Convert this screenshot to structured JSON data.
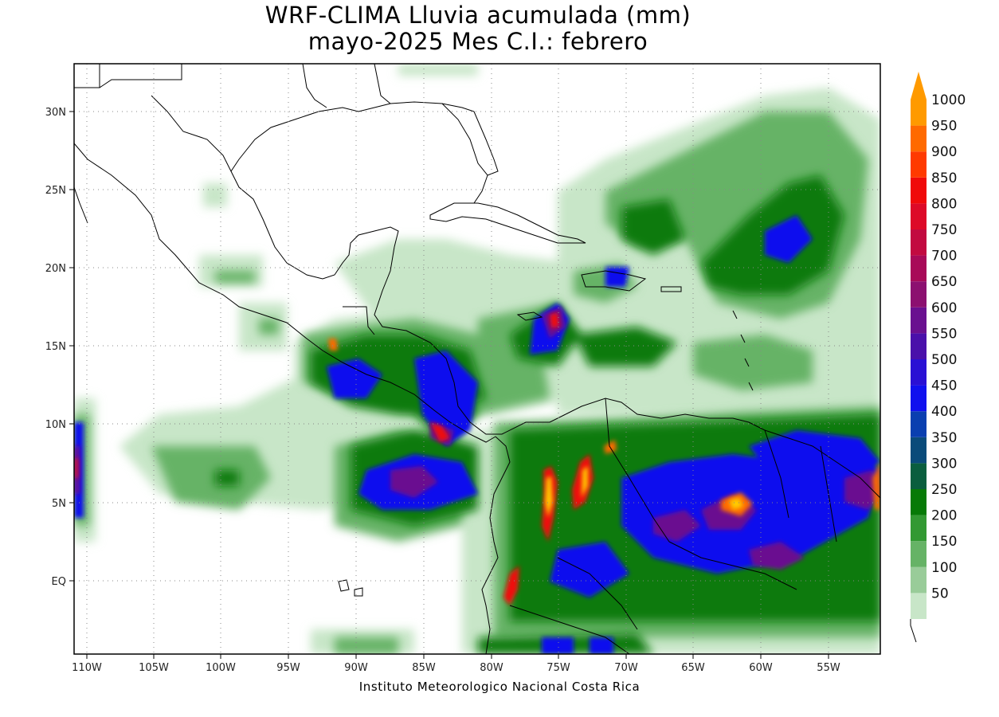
{
  "title": {
    "line1": "WRF-CLIMA Lluvia acumulada (mm)",
    "line2": "mayo-2025 Mes C.I.: febrero"
  },
  "footer": "Instituto Meteorologico Nacional Costa Rica",
  "axes": {
    "x_ticks": [
      "110W",
      "105W",
      "100W",
      "95W",
      "90W",
      "85W",
      "80W",
      "75W",
      "70W",
      "65W",
      "60W",
      "55W"
    ],
    "y_ticks": [
      "30N",
      "25N",
      "20N",
      "15N",
      "10N",
      "5N",
      "EQ"
    ],
    "lon_range": [
      -111,
      -51
    ],
    "lat_range": [
      -3.5,
      33
    ]
  },
  "legend": {
    "labels": [
      "50",
      "100",
      "150",
      "200",
      "250",
      "300",
      "350",
      "400",
      "450",
      "500",
      "550",
      "600",
      "650",
      "700",
      "750",
      "800",
      "850",
      "900",
      "950",
      "1000"
    ],
    "colors": [
      "#c8e6c8",
      "#99cc99",
      "#66b366",
      "#339933",
      "#077a07",
      "#0a5e3e",
      "#0a4b7a",
      "#0a3fb0",
      "#1010ee",
      "#2a10d4",
      "#4a10aa",
      "#6a1090",
      "#8c1070",
      "#a80a58",
      "#c20a40",
      "#dd0a28",
      "#f00a0a",
      "#ff3a00",
      "#ff6a00",
      "#ff9a00"
    ]
  }
}
